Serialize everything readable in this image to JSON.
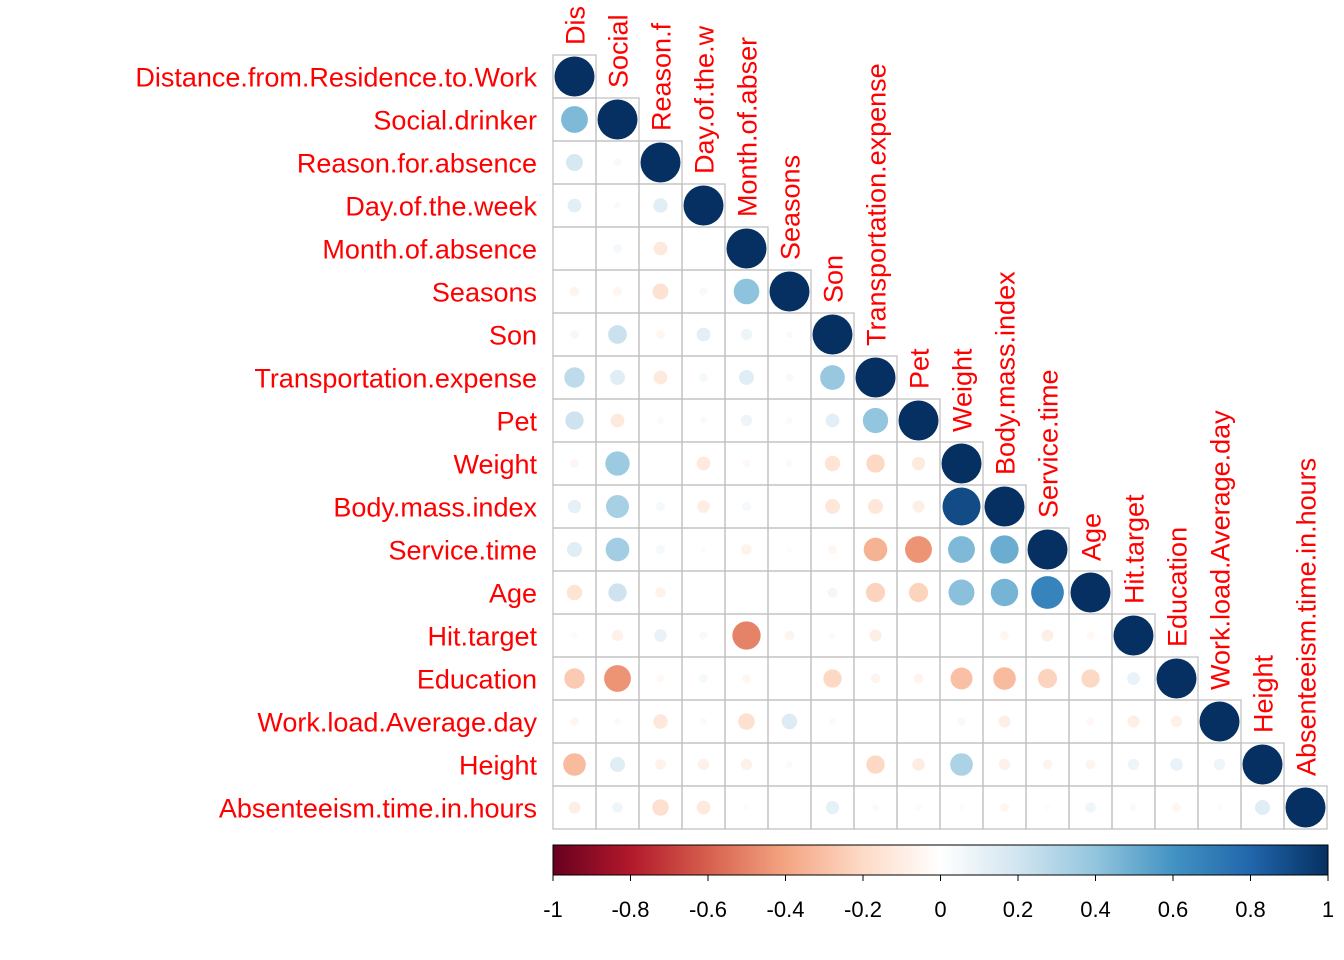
{
  "chart_data": {
    "type": "heatmap",
    "subtype": "correlation-lower-triangle-circles",
    "variables": [
      "Distance.from.Residence.to.Work",
      "Social.drinker",
      "Reason.for.absence",
      "Day.of.the.week",
      "Month.of.absence",
      "Seasons",
      "Son",
      "Transportation.expense",
      "Pet",
      "Weight",
      "Body.mass.index",
      "Service.time",
      "Age",
      "Hit.target",
      "Education",
      "Work.load.Average.day",
      "Height",
      "Absenteeism.time.in.hours"
    ],
    "column_labels_visible": [
      "Dis",
      "Social",
      "Reason.f",
      "Day.of.the.w",
      "Month.of.abser",
      "Seasons",
      "Son",
      "Transportation.expense",
      "Pet",
      "Weight",
      "Body.mass.index",
      "Service.time",
      "Age",
      "Hit.target",
      "Education",
      "Work.load.Average.day",
      "Height",
      "Absenteeism.time.in.hours"
    ],
    "matrix_lower": [
      [
        1
      ],
      [
        0.45,
        1
      ],
      [
        0.18,
        0.04,
        1
      ],
      [
        0.12,
        0.03,
        0.13,
        1
      ],
      [
        0.0,
        0.05,
        -0.12,
        0.0,
        1
      ],
      [
        -0.06,
        -0.05,
        -0.16,
        0.04,
        0.41,
        1
      ],
      [
        0.05,
        0.22,
        -0.05,
        0.12,
        0.08,
        0.03,
        1
      ],
      [
        0.26,
        0.14,
        -0.12,
        0.05,
        0.14,
        0.04,
        0.38,
        1
      ],
      [
        0.21,
        -0.12,
        -0.03,
        0.03,
        0.08,
        0.03,
        0.12,
        0.4,
        1
      ],
      [
        -0.05,
        0.37,
        0.0,
        -0.12,
        -0.04,
        0.03,
        -0.15,
        -0.21,
        -0.11,
        1
      ],
      [
        0.11,
        0.33,
        0.05,
        -0.1,
        0.05,
        0.0,
        -0.14,
        -0.14,
        -0.09,
        0.9,
        1
      ],
      [
        0.14,
        0.35,
        0.05,
        0.02,
        -0.07,
        0.02,
        -0.05,
        -0.35,
        -0.45,
        0.45,
        0.5,
        1
      ],
      [
        -0.15,
        0.21,
        -0.07,
        0.0,
        0.0,
        0.0,
        0.06,
        -0.23,
        -0.23,
        0.42,
        0.47,
        0.67,
        1
      ],
      [
        -0.03,
        -0.08,
        0.1,
        0.04,
        -0.5,
        -0.06,
        -0.03,
        -0.09,
        0.0,
        0.0,
        -0.05,
        -0.09,
        -0.04,
        1
      ],
      [
        -0.26,
        -0.45,
        -0.04,
        0.05,
        -0.05,
        0.0,
        -0.21,
        -0.06,
        -0.06,
        -0.3,
        -0.32,
        -0.23,
        -0.21,
        0.1,
        1
      ],
      [
        -0.05,
        0.03,
        -0.13,
        0.03,
        -0.17,
        0.15,
        0.03,
        0.0,
        0.0,
        0.04,
        -0.09,
        0.0,
        -0.04,
        -0.09,
        -0.08,
        1
      ],
      [
        -0.32,
        0.14,
        -0.07,
        -0.08,
        -0.08,
        0.03,
        0.0,
        -0.21,
        -0.1,
        0.32,
        -0.08,
        -0.06,
        -0.06,
        0.08,
        0.1,
        0.08,
        1
      ],
      [
        -0.09,
        0.07,
        -0.17,
        -0.12,
        0.02,
        0.0,
        0.11,
        0.03,
        -0.03,
        0.02,
        -0.05,
        0.02,
        0.07,
        0.03,
        -0.05,
        0.02,
        0.14,
        1
      ]
    ],
    "colorbar": {
      "range": [
        -1,
        1
      ],
      "ticks": [
        "-1",
        "-0.8",
        "-0.6",
        "-0.4",
        "-0.2",
        "0",
        "0.2",
        "0.4",
        "0.6",
        "0.8",
        "1"
      ],
      "stops": [
        "#67001F",
        "#B2182B",
        "#D6604D",
        "#F4A582",
        "#FDDBC7",
        "#FFFFFF",
        "#D1E5F0",
        "#92C5DE",
        "#4393C3",
        "#2166AC",
        "#053061"
      ]
    },
    "label_color": "#FF0000",
    "grid_color": "#BEBEBE"
  }
}
